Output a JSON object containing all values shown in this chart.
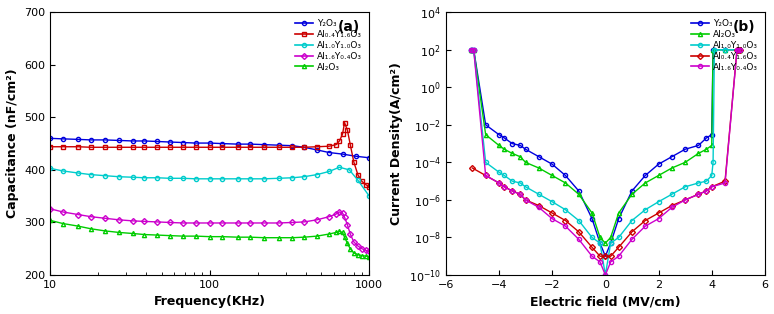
{
  "fig_width": 7.74,
  "fig_height": 3.14,
  "dpi": 100,
  "background_color": "#ffffff",
  "plot_a": {
    "label": "(a)",
    "xlabel": "Frequency(KHz)",
    "ylabel": "Capacitance (nF/cm²)",
    "xlim_log": [
      10,
      1000
    ],
    "ylim": [
      200,
      700
    ],
    "yticks": [
      200,
      300,
      400,
      500,
      600,
      700
    ],
    "series": [
      {
        "name": "Y₂O₃",
        "color": "#0000dd",
        "marker": "o",
        "markersize": 3,
        "x": [
          10,
          12,
          15,
          18,
          22,
          27,
          33,
          39,
          47,
          56,
          68,
          82,
          100,
          120,
          150,
          180,
          220,
          270,
          330,
          390,
          470,
          560,
          680,
          820,
          1000
        ],
        "y": [
          460,
          459,
          458,
          457,
          457,
          456,
          455,
          455,
          454,
          453,
          452,
          451,
          451,
          450,
          449,
          449,
          448,
          447,
          446,
          443,
          438,
          433,
          430,
          426,
          423
        ]
      },
      {
        "name": "Al₀.₄Y₁.₆O₃",
        "color": "#cc0000",
        "marker": "s",
        "markersize": 3,
        "x": [
          10,
          12,
          15,
          18,
          22,
          27,
          33,
          39,
          47,
          56,
          68,
          82,
          100,
          120,
          150,
          180,
          220,
          270,
          330,
          390,
          470,
          560,
          620,
          650,
          680,
          700,
          730,
          760,
          800,
          850,
          900,
          950,
          1000
        ],
        "y": [
          444,
          444,
          444,
          443,
          443,
          443,
          443,
          443,
          443,
          443,
          443,
          443,
          443,
          443,
          443,
          443,
          443,
          443,
          443,
          443,
          444,
          445,
          448,
          455,
          468,
          490,
          475,
          448,
          415,
          390,
          378,
          372,
          368
        ]
      },
      {
        "name": "Al₁.₀Y₁.₀O₃",
        "color": "#00cccc",
        "marker": "o",
        "markersize": 3,
        "x": [
          10,
          12,
          15,
          18,
          22,
          27,
          33,
          39,
          47,
          56,
          68,
          82,
          100,
          120,
          150,
          180,
          220,
          270,
          330,
          390,
          470,
          560,
          650,
          750,
          850,
          1000
        ],
        "y": [
          403,
          398,
          394,
          391,
          389,
          387,
          386,
          385,
          385,
          384,
          384,
          383,
          383,
          383,
          383,
          383,
          383,
          384,
          385,
          387,
          391,
          397,
          405,
          400,
          380,
          350
        ]
      },
      {
        "name": "Al₁.₆Y₀.₄O₃",
        "color": "#cc00cc",
        "marker": "D",
        "markersize": 3,
        "x": [
          10,
          12,
          15,
          18,
          22,
          27,
          33,
          39,
          47,
          56,
          68,
          82,
          100,
          120,
          150,
          180,
          220,
          270,
          330,
          390,
          470,
          560,
          620,
          650,
          680,
          700,
          730,
          760,
          800,
          850,
          900,
          950,
          1000
        ],
        "y": [
          326,
          320,
          315,
          311,
          308,
          305,
          303,
          302,
          301,
          300,
          299,
          299,
          299,
          299,
          299,
          299,
          299,
          299,
          300,
          301,
          305,
          311,
          316,
          320,
          318,
          310,
          295,
          278,
          263,
          255,
          250,
          247,
          245
        ]
      },
      {
        "name": "Al₂O₃",
        "color": "#00cc00",
        "marker": "^",
        "markersize": 3,
        "x": [
          10,
          12,
          15,
          18,
          22,
          27,
          33,
          39,
          47,
          56,
          68,
          82,
          100,
          120,
          150,
          180,
          220,
          270,
          330,
          390,
          470,
          560,
          620,
          650,
          680,
          700,
          730,
          760,
          800,
          850,
          900,
          950,
          1000
        ],
        "y": [
          304,
          298,
          293,
          288,
          284,
          281,
          279,
          277,
          276,
          275,
          274,
          274,
          273,
          273,
          272,
          272,
          271,
          271,
          271,
          272,
          274,
          278,
          281,
          283,
          281,
          272,
          260,
          250,
          242,
          239,
          237,
          236,
          235
        ]
      }
    ]
  },
  "plot_b": {
    "label": "(b)",
    "xlabel": "Electric field (MV/cm)",
    "ylabel": "Current Density(A/cm²)",
    "xlim": [
      -6,
      6
    ],
    "ylim_log": [
      -10,
      4
    ],
    "xticks": [
      -6,
      -4,
      -2,
      0,
      2,
      4,
      6
    ],
    "series": [
      {
        "name": "Y₂O₃",
        "color": "#0000dd",
        "marker": "o",
        "markersize": 3,
        "x": [
          -5.05,
          -5.0,
          -4.95,
          -4.5,
          -4.0,
          -3.8,
          -3.5,
          -3.2,
          -3.0,
          -2.5,
          -2.0,
          -1.5,
          -1.0,
          -0.5,
          -0.2,
          0.0,
          0.2,
          0.5,
          1.0,
          1.5,
          2.0,
          2.5,
          3.0,
          3.5,
          3.8,
          4.0,
          4.05,
          4.1,
          4.5,
          5.0,
          5.05
        ],
        "y": [
          100.0,
          100.0,
          100.0,
          0.01,
          0.003,
          0.002,
          0.001,
          0.0008,
          0.0005,
          0.0002,
          8e-05,
          2e-05,
          3e-06,
          1e-07,
          5e-09,
          1e-09,
          5e-09,
          1e-07,
          3e-06,
          2e-05,
          8e-05,
          0.0002,
          0.0005,
          0.0008,
          0.002,
          0.003,
          100.0,
          100.0,
          100.0,
          100.0,
          100.0
        ]
      },
      {
        "name": "Al₂O₃",
        "color": "#00cc00",
        "marker": "^",
        "markersize": 3,
        "x": [
          -5.05,
          -5.0,
          -4.95,
          -4.5,
          -4.0,
          -3.8,
          -3.5,
          -3.2,
          -3.0,
          -2.5,
          -2.0,
          -1.5,
          -1.0,
          -0.5,
          -0.2,
          0.0,
          0.2,
          0.5,
          1.0,
          1.5,
          2.0,
          2.5,
          3.0,
          3.5,
          3.8,
          4.0,
          4.05,
          4.1,
          4.5,
          5.0,
          5.05
        ],
        "y": [
          100.0,
          100.0,
          100.0,
          0.003,
          0.0008,
          0.0005,
          0.0003,
          0.0002,
          0.0001,
          5e-05,
          2e-05,
          8e-06,
          2e-06,
          2e-07,
          1e-08,
          5e-09,
          1e-08,
          2e-07,
          2e-06,
          8e-06,
          2e-05,
          5e-05,
          0.0001,
          0.0003,
          0.0005,
          0.0008,
          100.0,
          100.0,
          100.0,
          100.0,
          100.0
        ]
      },
      {
        "name": "Al₁.₀Y₁.₀O₃",
        "color": "#00cccc",
        "marker": "o",
        "markersize": 3,
        "x": [
          -5.05,
          -5.0,
          -4.95,
          -4.5,
          -4.0,
          -3.8,
          -3.5,
          -3.2,
          -3.0,
          -2.5,
          -2.0,
          -1.5,
          -1.0,
          -0.5,
          -0.2,
          0.0,
          0.2,
          0.5,
          1.0,
          1.5,
          2.0,
          2.5,
          3.0,
          3.5,
          3.8,
          4.0,
          4.05,
          4.1,
          4.5,
          5.0,
          5.05
        ],
        "y": [
          100.0,
          100.0,
          100.0,
          0.0001,
          3e-05,
          2e-05,
          1e-05,
          8e-06,
          5e-06,
          2e-06,
          8e-07,
          3e-07,
          8e-08,
          1e-08,
          5e-09,
          1e-10,
          5e-09,
          1e-08,
          8e-08,
          3e-07,
          8e-07,
          2e-06,
          5e-06,
          8e-06,
          1e-05,
          2e-05,
          0.0001,
          100.0,
          100.0,
          100.0,
          100.0
        ]
      },
      {
        "name": "Al₀.₄Y₁.₆O₃",
        "color": "#cc0000",
        "marker": "D",
        "markersize": 3,
        "x": [
          -5.0,
          -4.5,
          -4.0,
          -3.8,
          -3.5,
          -3.2,
          -3.0,
          -2.5,
          -2.0,
          -1.5,
          -1.0,
          -0.5,
          -0.2,
          0.0,
          0.2,
          0.5,
          1.0,
          1.5,
          2.0,
          2.5,
          3.0,
          3.5,
          3.8,
          4.0,
          4.5,
          4.95,
          5.0,
          5.05
        ],
        "y": [
          5e-05,
          2e-05,
          8e-06,
          5e-06,
          3e-06,
          2e-06,
          1e-06,
          5e-07,
          2e-07,
          8e-08,
          2e-08,
          3e-09,
          1e-09,
          1e-09,
          1e-09,
          3e-09,
          2e-08,
          8e-08,
          2e-07,
          5e-07,
          1e-06,
          2e-06,
          3e-06,
          5e-06,
          1e-05,
          100.0,
          100.0,
          100.0
        ]
      },
      {
        "name": "Al₁.₆Y₀.₄O₃",
        "color": "#cc00cc",
        "marker": "o",
        "markersize": 3,
        "x": [
          -5.05,
          -5.0,
          -4.95,
          -4.5,
          -4.0,
          -3.8,
          -3.5,
          -3.2,
          -3.0,
          -2.5,
          -2.0,
          -1.5,
          -1.0,
          -0.5,
          -0.2,
          0.0,
          0.2,
          0.5,
          1.0,
          1.5,
          2.0,
          2.5,
          3.0,
          3.5,
          3.8,
          4.0,
          4.5,
          4.95,
          5.0,
          5.05
        ],
        "y": [
          100.0,
          100.0,
          100.0,
          2e-05,
          8e-06,
          5e-06,
          3e-06,
          2e-06,
          1e-06,
          4e-07,
          1e-07,
          4e-08,
          8e-09,
          1e-09,
          5e-10,
          1e-10,
          5e-10,
          1e-09,
          8e-09,
          4e-08,
          1e-07,
          4e-07,
          1e-06,
          2e-06,
          3e-06,
          5e-06,
          8e-06,
          100.0,
          100.0,
          100.0
        ]
      }
    ]
  }
}
